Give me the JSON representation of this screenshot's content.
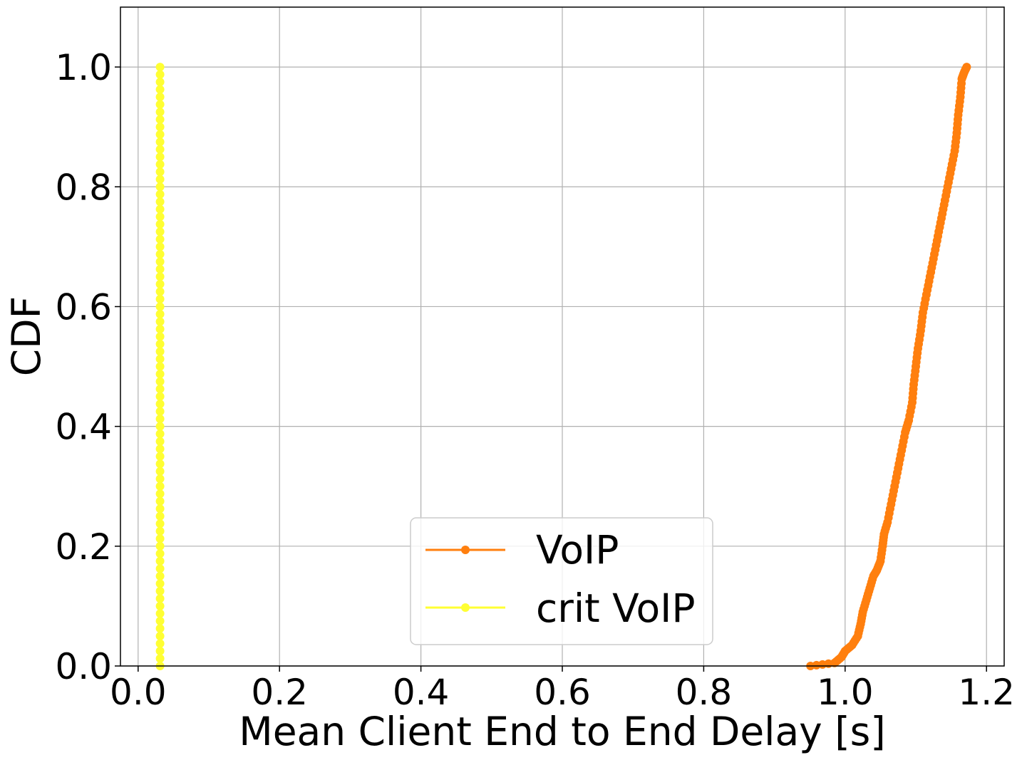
{
  "chart_data": {
    "type": "line",
    "title": "",
    "xlabel": "Mean Client End to End Delay [s]",
    "ylabel": "CDF",
    "xlim": [
      -0.025,
      1.225
    ],
    "ylim": [
      0.0,
      1.1
    ],
    "xticks": [
      0.0,
      0.2,
      0.4,
      0.6,
      0.8,
      1.0,
      1.2
    ],
    "xtick_labels": [
      "0.0",
      "0.2",
      "0.4",
      "0.6",
      "0.8",
      "1.0",
      "1.2"
    ],
    "yticks": [
      0.0,
      0.2,
      0.4,
      0.6,
      0.8,
      1.0
    ],
    "ytick_labels": [
      "0.0",
      "0.2",
      "0.4",
      "0.6",
      "0.8",
      "1.0"
    ],
    "grid": true,
    "legend_position": "bottom-center",
    "series": [
      {
        "name": "VoIP",
        "color": "#ff7f0e",
        "marker": "circle",
        "points": [
          [
            0.951,
            0.0
          ],
          [
            0.985,
            0.005
          ],
          [
            0.995,
            0.015
          ],
          [
            1.0,
            0.025
          ],
          [
            1.01,
            0.035
          ],
          [
            1.018,
            0.05
          ],
          [
            1.022,
            0.07
          ],
          [
            1.025,
            0.09
          ],
          [
            1.03,
            0.11
          ],
          [
            1.035,
            0.13
          ],
          [
            1.04,
            0.15
          ],
          [
            1.045,
            0.16
          ],
          [
            1.05,
            0.175
          ],
          [
            1.053,
            0.2
          ],
          [
            1.055,
            0.22
          ],
          [
            1.06,
            0.24
          ],
          [
            1.065,
            0.27
          ],
          [
            1.07,
            0.3
          ],
          [
            1.075,
            0.33
          ],
          [
            1.08,
            0.36
          ],
          [
            1.085,
            0.39
          ],
          [
            1.09,
            0.41
          ],
          [
            1.095,
            0.44
          ],
          [
            1.097,
            0.47
          ],
          [
            1.1,
            0.5
          ],
          [
            1.103,
            0.53
          ],
          [
            1.107,
            0.56
          ],
          [
            1.11,
            0.59
          ],
          [
            1.115,
            0.62
          ],
          [
            1.12,
            0.65
          ],
          [
            1.125,
            0.68
          ],
          [
            1.13,
            0.71
          ],
          [
            1.135,
            0.74
          ],
          [
            1.14,
            0.77
          ],
          [
            1.145,
            0.8
          ],
          [
            1.15,
            0.83
          ],
          [
            1.155,
            0.86
          ],
          [
            1.158,
            0.89
          ],
          [
            1.16,
            0.92
          ],
          [
            1.163,
            0.95
          ],
          [
            1.165,
            0.98
          ],
          [
            1.168,
            0.99
          ],
          [
            1.172,
            1.0
          ]
        ]
      },
      {
        "name": "crit VoIP",
        "color": "#ffff33",
        "marker": "circle",
        "points": [
          [
            0.031,
            0.0
          ],
          [
            0.031,
            0.05
          ],
          [
            0.031,
            0.1
          ],
          [
            0.031,
            0.15
          ],
          [
            0.031,
            0.2
          ],
          [
            0.031,
            0.25
          ],
          [
            0.031,
            0.3
          ],
          [
            0.031,
            0.35
          ],
          [
            0.031,
            0.4
          ],
          [
            0.031,
            0.45
          ],
          [
            0.031,
            0.5
          ],
          [
            0.031,
            0.55
          ],
          [
            0.031,
            0.6
          ],
          [
            0.031,
            0.65
          ],
          [
            0.031,
            0.7
          ],
          [
            0.031,
            0.75
          ],
          [
            0.031,
            0.8
          ],
          [
            0.031,
            0.85
          ],
          [
            0.031,
            0.9
          ],
          [
            0.031,
            0.95
          ],
          [
            0.031,
            1.0
          ]
        ]
      }
    ]
  }
}
